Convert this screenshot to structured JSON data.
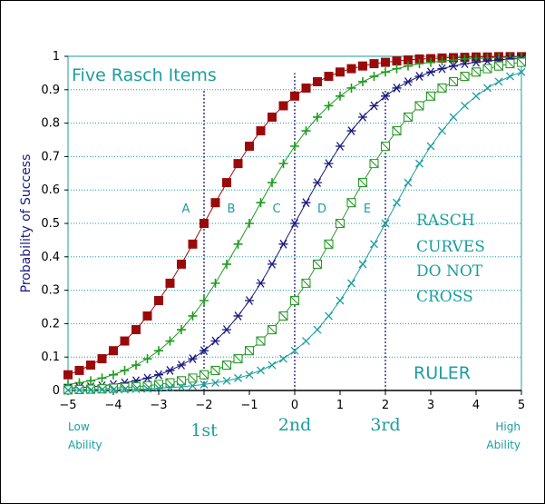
{
  "chart_data": {
    "type": "line",
    "title": "Five Rasch Items",
    "ylabel": "Probability of Success",
    "xlabel": "",
    "xlim": [
      -5,
      5
    ],
    "ylim": [
      0,
      1
    ],
    "x_ticks": [
      "-5",
      "-4",
      "-3",
      "-2",
      "-1",
      "0",
      "1",
      "2",
      "3",
      "4",
      "5"
    ],
    "y_ticks": [
      "0",
      "0.1",
      "0.2",
      "0.3",
      "0.4",
      "0.5",
      "0.6",
      "0.7",
      "0.8",
      "0.9",
      "1"
    ],
    "grid": "horizontal dotted",
    "x_extremes": {
      "low_line1": "Low",
      "low_line2": "Ability",
      "high_line1": "High",
      "high_line2": "Ability"
    },
    "x": [
      -5,
      -4.75,
      -4.5,
      -4.25,
      -4,
      -3.75,
      -3.5,
      -3.25,
      -3,
      -2.75,
      -2.5,
      -2.25,
      -2,
      -1.75,
      -1.5,
      -1.25,
      -1,
      -0.75,
      -0.5,
      -0.25,
      0,
      0.25,
      0.5,
      0.75,
      1,
      1.25,
      1.5,
      1.75,
      2,
      2.25,
      2.5,
      2.75,
      3,
      3.25,
      3.5,
      3.75,
      4,
      4.25,
      4.5,
      4.75,
      5
    ],
    "series": [
      {
        "name": "A",
        "difficulty": -2,
        "marker": "filled-square",
        "color": "#9b0a0a",
        "values": [
          0.047,
          0.06,
          0.076,
          0.095,
          0.119,
          0.148,
          0.182,
          0.223,
          0.269,
          0.321,
          0.378,
          0.438,
          0.5,
          0.562,
          0.622,
          0.679,
          0.731,
          0.777,
          0.818,
          0.852,
          0.881,
          0.905,
          0.924,
          0.94,
          0.953,
          0.963,
          0.971,
          0.978,
          0.982,
          0.986,
          0.989,
          0.992,
          0.993,
          0.995,
          0.996,
          0.997,
          0.998,
          0.998,
          0.999,
          0.999,
          0.999
        ]
      },
      {
        "name": "B",
        "difficulty": -1,
        "marker": "plus",
        "color": "#1e9a1e",
        "values": [
          0.018,
          0.023,
          0.029,
          0.037,
          0.047,
          0.06,
          0.076,
          0.095,
          0.119,
          0.148,
          0.182,
          0.223,
          0.269,
          0.321,
          0.378,
          0.438,
          0.5,
          0.562,
          0.622,
          0.679,
          0.731,
          0.777,
          0.818,
          0.852,
          0.881,
          0.905,
          0.924,
          0.94,
          0.953,
          0.963,
          0.971,
          0.978,
          0.982,
          0.986,
          0.989,
          0.992,
          0.993,
          0.995,
          0.996,
          0.997,
          0.998
        ]
      },
      {
        "name": "C",
        "difficulty": 0,
        "marker": "asterisk",
        "color": "#1a1a80",
        "values": [
          0.007,
          0.009,
          0.011,
          0.014,
          0.018,
          0.023,
          0.029,
          0.037,
          0.047,
          0.06,
          0.076,
          0.095,
          0.119,
          0.148,
          0.182,
          0.223,
          0.269,
          0.321,
          0.378,
          0.438,
          0.5,
          0.562,
          0.622,
          0.679,
          0.731,
          0.777,
          0.818,
          0.852,
          0.881,
          0.905,
          0.924,
          0.94,
          0.953,
          0.963,
          0.971,
          0.978,
          0.982,
          0.986,
          0.989,
          0.992,
          0.993
        ]
      },
      {
        "name": "D",
        "difficulty": 1,
        "marker": "boxed-x",
        "color": "#2a9a2a",
        "values": [
          0.002,
          0.003,
          0.004,
          0.005,
          0.007,
          0.009,
          0.011,
          0.014,
          0.018,
          0.023,
          0.029,
          0.037,
          0.047,
          0.06,
          0.076,
          0.095,
          0.119,
          0.148,
          0.182,
          0.223,
          0.269,
          0.321,
          0.378,
          0.438,
          0.5,
          0.562,
          0.622,
          0.679,
          0.731,
          0.777,
          0.818,
          0.852,
          0.881,
          0.905,
          0.924,
          0.94,
          0.953,
          0.963,
          0.971,
          0.978,
          0.982
        ]
      },
      {
        "name": "E",
        "difficulty": 2,
        "marker": "x",
        "color": "#1a9e9e",
        "values": [
          0.001,
          0.001,
          0.001,
          0.002,
          0.002,
          0.003,
          0.004,
          0.005,
          0.007,
          0.009,
          0.011,
          0.014,
          0.018,
          0.023,
          0.029,
          0.037,
          0.047,
          0.06,
          0.076,
          0.095,
          0.119,
          0.148,
          0.182,
          0.223,
          0.269,
          0.321,
          0.378,
          0.438,
          0.5,
          0.562,
          0.622,
          0.679,
          0.731,
          0.777,
          0.818,
          0.852,
          0.881,
          0.905,
          0.924,
          0.94,
          0.953
        ]
      }
    ],
    "reference_lines": [
      {
        "x": -2,
        "ymax": 0.9,
        "label": "1st"
      },
      {
        "x": 0,
        "ymax": 0.95,
        "label": "2nd"
      },
      {
        "x": 2,
        "ymax": 0.9,
        "label": "3rd"
      }
    ],
    "annotations": {
      "rasch_curves": [
        "RASCH",
        "CURVES",
        "DO NOT",
        "CROSS"
      ],
      "ruler": "RULER"
    }
  },
  "colors": {
    "teal": "#1a9e9e",
    "axis": "#000000",
    "grid": "#1a9e9e",
    "ylabel": "#1a1a80",
    "refline": "#1a1a80"
  }
}
